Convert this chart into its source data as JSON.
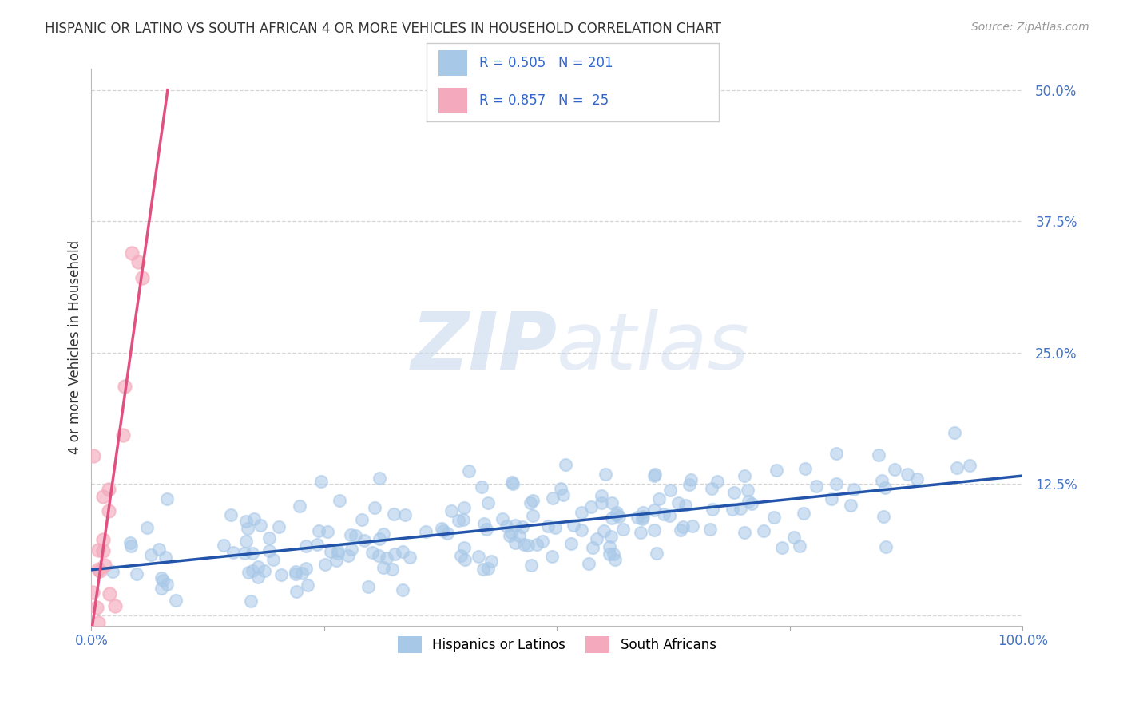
{
  "title": "HISPANIC OR LATINO VS SOUTH AFRICAN 4 OR MORE VEHICLES IN HOUSEHOLD CORRELATION CHART",
  "source": "Source: ZipAtlas.com",
  "ylabel": "4 or more Vehicles in Household",
  "watermark_zip": "ZIP",
  "watermark_atlas": "atlas",
  "legend_label_1": "Hispanics or Latinos",
  "legend_label_2": "South Africans",
  "R1": 0.505,
  "N1": 201,
  "R2": 0.857,
  "N2": 25,
  "color_blue": "#a8c8e8",
  "color_blue_line": "#2255aa",
  "color_pink": "#f4aabc",
  "color_pink_line": "#e05080",
  "xlim": [
    0.0,
    1.0
  ],
  "ylim": [
    -0.01,
    0.52
  ],
  "yticks": [
    0.0,
    0.125,
    0.25,
    0.375,
    0.5
  ],
  "ytick_labels": [
    "",
    "12.5%",
    "25.0%",
    "37.5%",
    "50.0%"
  ],
  "background_color": "#ffffff",
  "grid_color": "#cccccc",
  "title_color": "#333333",
  "axis_tick_color": "#4472c4",
  "ylabel_color": "#333333"
}
